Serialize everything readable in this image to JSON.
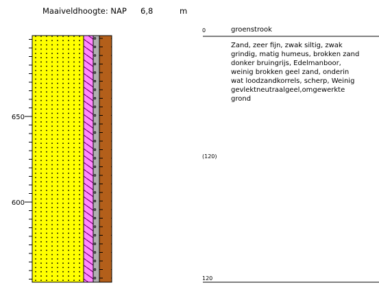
{
  "header": {
    "label": "Maaiveldhoogte: NAP",
    "value": "6,8",
    "unit": "m"
  },
  "scale": {
    "ticks": [
      "650",
      "600"
    ]
  },
  "layer": {
    "top": "0",
    "name": "groenstrook",
    "description": [
      "Zand, zeer fijn, zwak siltig, zwak",
      "grindig, matig humeus, brokken zand",
      "donker bruingrijs, Edelmanboor,",
      "weinig brokken geel zand, onderin",
      "wat loodzandkorrels, scherp, Weinig",
      "gevlektneutraalgeel,omgewerkte",
      "grond"
    ],
    "sample": "(120)",
    "bottom": "120"
  }
}
